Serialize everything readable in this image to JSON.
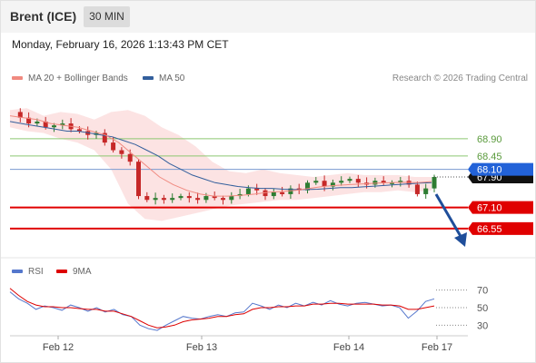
{
  "header": {
    "instrument": "Brent (ICE)",
    "timeframe": "30 MIN"
  },
  "datetime": "Monday, February 16, 2026 1:13:43 PM CET",
  "legend_price": [
    {
      "label": "MA 20 + Bollinger Bands",
      "color": "#f08a80"
    },
    {
      "label": "MA 50",
      "color": "#335f9c"
    }
  ],
  "credit": "Research © 2026 Trading Central",
  "legend_rsi": [
    {
      "label": "RSI",
      "color": "#5577cc"
    },
    {
      "label": "9MA",
      "color": "#dd0000"
    }
  ],
  "colors": {
    "green_level": "#88c070",
    "blue_level": "#7a9ad0",
    "red_level": "#e00000",
    "current_price_tag": "#111111",
    "pivot_tag": "#2262d8"
  },
  "chart_data": [
    {
      "type": "candlestick",
      "ylim": [
        66.0,
        69.8
      ],
      "levels": [
        {
          "value": 68.9,
          "label": "68.90",
          "kind": "resistance"
        },
        {
          "value": 68.45,
          "label": "68.45",
          "kind": "resistance"
        },
        {
          "value": 68.1,
          "label": "68.10",
          "kind": "pivot"
        },
        {
          "value": 67.1,
          "label": "67.10",
          "kind": "support"
        },
        {
          "value": 66.55,
          "label": "66.55",
          "kind": "support"
        }
      ],
      "current_price": {
        "value": 67.9,
        "label": "67.90"
      },
      "x_ticks": [
        "Feb 12",
        "Feb 13",
        "Feb 14",
        "Feb 17"
      ],
      "close_path": [
        69.6,
        69.45,
        69.3,
        69.35,
        69.2,
        69.25,
        69.3,
        69.15,
        69.1,
        69.0,
        69.05,
        68.8,
        68.6,
        68.5,
        68.3,
        67.4,
        67.3,
        67.35,
        67.3,
        67.35,
        67.4,
        67.35,
        67.3,
        67.4,
        67.35,
        67.3,
        67.4,
        67.45,
        67.6,
        67.55,
        67.4,
        67.5,
        67.45,
        67.6,
        67.55,
        67.75,
        67.8,
        67.65,
        67.75,
        67.8,
        67.85,
        67.75,
        67.7,
        67.8,
        67.75,
        67.75,
        67.8,
        67.7,
        67.45,
        67.6,
        67.9
      ],
      "ma50_path": [
        69.35,
        69.3,
        69.25,
        69.2,
        69.15,
        69.1,
        69.1,
        69.05,
        69.0,
        68.95,
        68.85,
        68.75,
        68.6,
        68.45,
        68.25,
        68.1,
        67.95,
        67.85,
        67.75,
        67.7,
        67.65,
        67.62,
        67.6,
        67.6,
        67.58,
        67.57,
        67.57,
        67.58,
        67.6,
        67.62,
        67.62,
        67.64,
        67.66,
        67.68,
        67.7,
        67.72,
        67.74,
        67.75
      ],
      "ma20_path": [
        69.5,
        69.45,
        69.4,
        69.3,
        69.25,
        69.2,
        69.1,
        69.0,
        68.8,
        68.5,
        68.2,
        67.9,
        67.7,
        67.55,
        67.45,
        67.4,
        67.4,
        67.42,
        67.45,
        67.5,
        67.52,
        67.55,
        67.6,
        67.65,
        67.68,
        67.7,
        67.72,
        67.74,
        67.75,
        67.76,
        67.75,
        67.78
      ],
      "bb_upper": [
        69.65,
        69.7,
        69.5,
        69.6,
        69.55,
        69.4,
        69.6,
        69.65,
        69.5,
        69.2,
        69.0,
        68.7,
        68.3,
        68.05,
        68.0,
        68.1,
        68.0,
        67.95,
        67.9,
        67.95,
        68.0,
        67.95,
        67.95,
        67.95,
        67.9,
        67.9
      ],
      "bb_lower": [
        69.2,
        69.1,
        69.05,
        68.9,
        68.8,
        68.6,
        68.1,
        67.2,
        66.8,
        66.75,
        66.85,
        66.95,
        67.05,
        67.15,
        67.2,
        67.25,
        67.3,
        67.3,
        67.35,
        67.4,
        67.45,
        67.5,
        67.5,
        67.55,
        67.5,
        67.55
      ]
    },
    {
      "type": "line",
      "name": "RSI",
      "ylim": [
        20,
        80
      ],
      "y_ticks": [
        30,
        50,
        70
      ],
      "rsi_path": [
        68,
        60,
        55,
        48,
        52,
        50,
        47,
        53,
        50,
        46,
        50,
        45,
        48,
        42,
        40,
        30,
        26,
        24,
        30,
        35,
        40,
        38,
        37,
        40,
        42,
        40,
        44,
        45,
        55,
        52,
        48,
        53,
        50,
        55,
        52,
        56,
        53,
        58,
        54,
        52,
        55,
        56,
        54,
        52,
        53,
        50,
        38,
        46,
        57,
        60
      ],
      "ma9_path": [
        72,
        64,
        57,
        53,
        51,
        51,
        50,
        50,
        49,
        48,
        48,
        46,
        46,
        43,
        40,
        35,
        30,
        27,
        28,
        30,
        34,
        36,
        37,
        38,
        40,
        40,
        42,
        43,
        48,
        50,
        50,
        51,
        51,
        52,
        52,
        54,
        54,
        55,
        55,
        54,
        54,
        54,
        54,
        53,
        53,
        52,
        48,
        48,
        50,
        52
      ]
    }
  ]
}
